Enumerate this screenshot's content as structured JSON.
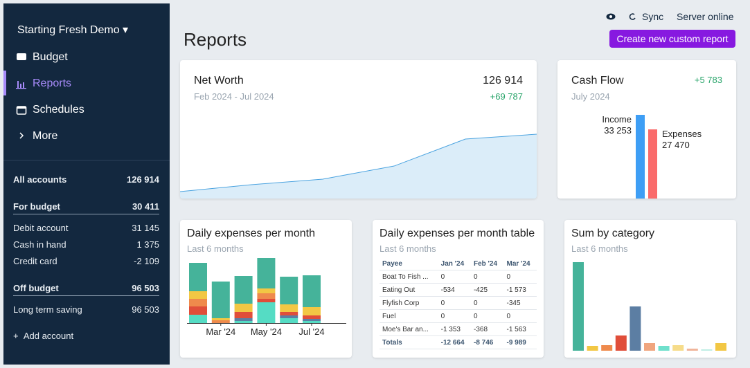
{
  "sidebar": {
    "budget_name": "Starting Fresh Demo",
    "nav": [
      "Budget",
      "Reports",
      "Schedules",
      "More"
    ],
    "all_accounts": {
      "name": "All accounts",
      "balance": "126 914"
    },
    "groups": [
      {
        "name": "For budget",
        "balance": "30 411",
        "accounts": [
          {
            "name": "Debit account",
            "balance": "31 145"
          },
          {
            "name": "Cash in hand",
            "balance": "1 375"
          },
          {
            "name": "Credit card",
            "balance": "-2 109"
          }
        ]
      },
      {
        "name": "Off budget",
        "balance": "96 503",
        "accounts": [
          {
            "name": "Long term saving",
            "balance": "96 503"
          }
        ]
      }
    ],
    "add_account": "Add account"
  },
  "header": {
    "sync": "Sync",
    "server_status": "Server online",
    "title": "Reports",
    "create_button": "Create new custom report"
  },
  "net_worth": {
    "title": "Net Worth",
    "range": "Feb 2024 - Jul 2024",
    "total": "126 914",
    "change": "+69 787",
    "color": "#4aa3e0",
    "values": [
      57127,
      65500,
      72300,
      88200,
      121000,
      126914
    ]
  },
  "cash_flow": {
    "title": "Cash Flow",
    "period": "July 2024",
    "change": "+5 783",
    "income": {
      "label": "Income",
      "value": 33253,
      "value_label": "33 253",
      "color": "#3e9ef5"
    },
    "expenses": {
      "label": "Expenses",
      "value": 27470,
      "value_label": "27 470",
      "color": "#fa6b6b"
    }
  },
  "daily_expenses": {
    "title": "Daily expenses per month",
    "subtitle": "Last 6 months",
    "categories": [
      null,
      "Mar '24",
      null,
      "May '24",
      null,
      "Jul '24"
    ],
    "series": [
      {
        "color": "#55dcc4",
        "values": [
          12,
          0,
          3,
          30,
          7,
          3
        ]
      },
      {
        "color": "#5c7ea3",
        "values": [
          0,
          0,
          4,
          0,
          4,
          3
        ]
      },
      {
        "color": "#e04e3a",
        "values": [
          12,
          0,
          9,
          5,
          5,
          5
        ]
      },
      {
        "color": "#ef8a4c",
        "values": [
          11,
          4,
          0,
          8,
          0,
          0
        ]
      },
      {
        "color": "#f2c744",
        "values": [
          11,
          3,
          12,
          7,
          11,
          12
        ]
      },
      {
        "color": "#45b39a",
        "values": [
          41,
          53,
          40,
          44,
          40,
          46
        ]
      }
    ]
  },
  "expenses_table": {
    "title": "Daily expenses per month table",
    "subtitle": "Last 6 months",
    "columns": [
      "Payee",
      "Jan '24",
      "Feb '24",
      "Mar '24"
    ],
    "rows": [
      [
        "Boat To Fish ...",
        "0",
        "0",
        "0"
      ],
      [
        "Eating Out",
        "-534",
        "-425",
        "-1 573"
      ],
      [
        "Flyfish Corp",
        "0",
        "0",
        "-345"
      ],
      [
        "Fuel",
        "0",
        "0",
        "0"
      ],
      [
        "Moe's Bar an...",
        "-1 353",
        "-368",
        "-1 563"
      ]
    ],
    "totals": [
      "Totals",
      "-12 664",
      "-8 746",
      "-9 989"
    ]
  },
  "sum_by_category": {
    "title": "Sum by category",
    "subtitle": "Last 6 months",
    "values": [
      128,
      7,
      8,
      22,
      64,
      11,
      7,
      8,
      3,
      2,
      11
    ],
    "colors": [
      "#45b39a",
      "#f2c744",
      "#ef8a4c",
      "#e04e3a",
      "#5c7ea3",
      "#f0a57e",
      "#6fe0cc",
      "#f6dc8a",
      "#f0b49a",
      "#bfeee5",
      "#f2c744"
    ]
  }
}
